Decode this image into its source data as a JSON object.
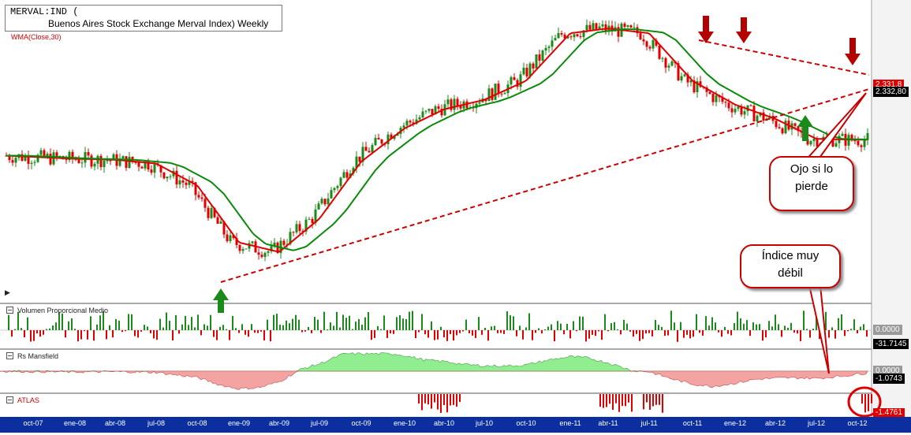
{
  "header": {
    "symbol_line": "MERVAL:IND (",
    "name_line": "Buenos Aires Stock Exchange Merval Index) Weekly",
    "indicator_label": "WMA(Close,30)"
  },
  "price_tags": {
    "last_price": "2.332,80",
    "wma_value": "2.331,8"
  },
  "annotations": {
    "callout_1_line1": "Ojo si lo",
    "callout_1_line2": "pierde",
    "callout_2_line1": "Índice muy",
    "callout_2_line2": "débil"
  },
  "panes": [
    {
      "label": "Volumen Proporcional Medio",
      "zero_tag": "0.0000",
      "value_tag": "-31.7145"
    },
    {
      "label": "Rs Mansfield",
      "zero_tag": "0.0000",
      "value_tag": "-1.0743"
    },
    {
      "label": "ATLAS",
      "value_tag": "-1.4761"
    }
  ],
  "time_axis": [
    "oct-07",
    "ene-08",
    "abr-08",
    "jul-08",
    "oct-08",
    "ene-09",
    "abr-09",
    "jul-09",
    "oct-09",
    "ene-10",
    "abr-10",
    "jul-10",
    "oct-10",
    "ene-11",
    "abr-11",
    "jul-11",
    "oct-11",
    "ene-12",
    "abr-12",
    "jul-12",
    "oct-12"
  ],
  "colors": {
    "up": "#1a8a1a",
    "down": "#e00000",
    "wma": "#e00000",
    "ma_green": "#0a8a0a",
    "rs_pos": "#90ee90",
    "rs_neg": "#f4a3a3",
    "axis": "#0b2f9f"
  },
  "chart_data": {
    "type": "line",
    "title": "MERVAL:IND ( Buenos Aires Stock Exchange Merval Index) Weekly",
    "xlabel": "",
    "ylabel": "",
    "note_type": "candlestick",
    "x": [
      "oct-07",
      "ene-08",
      "abr-08",
      "jul-08",
      "oct-08",
      "ene-09",
      "abr-09",
      "jul-09",
      "oct-09",
      "ene-10",
      "abr-10",
      "jul-10",
      "oct-10",
      "ene-11",
      "abr-11",
      "jul-11",
      "oct-11",
      "ene-12",
      "abr-12",
      "jul-12",
      "oct-12"
    ],
    "series": [
      {
        "name": "WMA(Close,30)",
        "values": [
          2150,
          2130,
          2120,
          2080,
          1850,
          1250,
          1150,
          1500,
          2100,
          2450,
          2650,
          2750,
          2950,
          3450,
          3500,
          3450,
          2950,
          2700,
          2550,
          2340,
          2330
        ]
      }
    ],
    "last_close": 2332.8,
    "grid": false,
    "legend": "top-left"
  }
}
